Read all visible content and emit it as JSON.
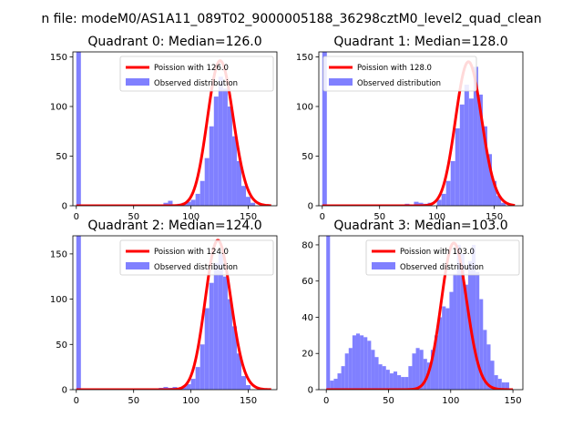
{
  "figure": {
    "suptitle": "n file: modeM0/AS1A11_089T02_9000005188_36298cztM0_level2_quad_clean"
  },
  "colors": {
    "poisson": "#ff0000",
    "observed": "#8080ff",
    "axes": "#000000"
  },
  "chart_data": [
    {
      "type": "bar",
      "title": "Quadrant 0: Median=126.0",
      "xlabel": "",
      "ylabel": "",
      "xlim": [
        -3,
        175
      ],
      "ylim": [
        0,
        155
      ],
      "xticks": [
        0,
        50,
        100,
        150
      ],
      "yticks": [
        0,
        50,
        100,
        150
      ],
      "legend_location": "upper-right",
      "series": [
        {
          "name": "Poission with 126.0",
          "kind": "line",
          "mean": 126.0,
          "peak": 146,
          "x_range": [
            0,
            170
          ]
        },
        {
          "name": "Observed distribution",
          "kind": "histogram",
          "bin_width": 4,
          "bins": [
            [
              0,
              160
            ],
            [
              76,
              3
            ],
            [
              80,
              5
            ],
            [
              84,
              1
            ],
            [
              88,
              2
            ],
            [
              92,
              3
            ],
            [
              96,
              4
            ],
            [
              100,
              6
            ],
            [
              104,
              12
            ],
            [
              108,
              25
            ],
            [
              112,
              48
            ],
            [
              116,
              80
            ],
            [
              120,
              110
            ],
            [
              124,
              130
            ],
            [
              128,
              118
            ],
            [
              132,
              100
            ],
            [
              136,
              70
            ],
            [
              140,
              45
            ],
            [
              144,
              20
            ],
            [
              148,
              9
            ],
            [
              152,
              3
            ]
          ]
        }
      ]
    },
    {
      "type": "bar",
      "title": "Quadrant 1: Median=128.0",
      "xlabel": "",
      "ylabel": "",
      "xlim": [
        -3,
        175
      ],
      "ylim": [
        0,
        155
      ],
      "xticks": [
        0,
        50,
        100,
        150
      ],
      "yticks": [
        0,
        50,
        100,
        150
      ],
      "legend_location": "upper-left",
      "series": [
        {
          "name": "Poission with 128.0",
          "kind": "line",
          "mean": 128.0,
          "peak": 145,
          "x_range": [
            0,
            168
          ]
        },
        {
          "name": "Observed distribution",
          "kind": "histogram",
          "bin_width": 4,
          "bins": [
            [
              0,
              160
            ],
            [
              72,
              2
            ],
            [
              80,
              4
            ],
            [
              84,
              3
            ],
            [
              88,
              2
            ],
            [
              92,
              3
            ],
            [
              100,
              6
            ],
            [
              104,
              12
            ],
            [
              108,
              25
            ],
            [
              112,
              45
            ],
            [
              116,
              78
            ],
            [
              120,
              102
            ],
            [
              124,
              122
            ],
            [
              128,
              108
            ],
            [
              132,
              140
            ],
            [
              136,
              112
            ],
            [
              140,
              80
            ],
            [
              144,
              52
            ],
            [
              148,
              25
            ],
            [
              152,
              10
            ],
            [
              156,
              3
            ]
          ]
        }
      ]
    },
    {
      "type": "bar",
      "title": "Quadrant 2: Median=124.0",
      "xlabel": "",
      "ylabel": "",
      "xlim": [
        -3,
        175
      ],
      "ylim": [
        0,
        170
      ],
      "xticks": [
        0,
        50,
        100,
        150
      ],
      "yticks": [
        0,
        50,
        100,
        150
      ],
      "legend_location": "upper-right",
      "series": [
        {
          "name": "Poission with 124.0",
          "kind": "line",
          "mean": 124.0,
          "peak": 165,
          "x_range": [
            0,
            170
          ]
        },
        {
          "name": "Observed distribution",
          "kind": "histogram",
          "bin_width": 4,
          "bins": [
            [
              0,
              170
            ],
            [
              72,
              2
            ],
            [
              76,
              3
            ],
            [
              80,
              2
            ],
            [
              84,
              3
            ],
            [
              88,
              2
            ],
            [
              92,
              4
            ],
            [
              96,
              6
            ],
            [
              100,
              12
            ],
            [
              104,
              25
            ],
            [
              108,
              50
            ],
            [
              112,
              90
            ],
            [
              116,
              118
            ],
            [
              120,
              140
            ],
            [
              124,
              150
            ],
            [
              128,
              125
            ],
            [
              132,
              100
            ],
            [
              136,
              70
            ],
            [
              140,
              40
            ],
            [
              144,
              15
            ],
            [
              148,
              5
            ]
          ]
        }
      ]
    },
    {
      "type": "bar",
      "title": "Quadrant 3: Median=103.0",
      "xlabel": "",
      "ylabel": "",
      "xlim": [
        -6,
        158
      ],
      "ylim": [
        0,
        85
      ],
      "xticks": [
        0,
        50,
        100,
        150
      ],
      "yticks": [
        0,
        20,
        40,
        60,
        80
      ],
      "legend_location": "upper-right",
      "series": [
        {
          "name": "Poission with 103.0",
          "kind": "line",
          "mean": 103.0,
          "peak": 81,
          "x_range": [
            0,
            150
          ]
        },
        {
          "name": "Observed distribution",
          "kind": "histogram",
          "bin_width": 3,
          "bins": [
            [
              0,
              85
            ],
            [
              3,
              5
            ],
            [
              6,
              6
            ],
            [
              9,
              9
            ],
            [
              12,
              13
            ],
            [
              15,
              20
            ],
            [
              18,
              23
            ],
            [
              21,
              30
            ],
            [
              24,
              31
            ],
            [
              27,
              30
            ],
            [
              30,
              29
            ],
            [
              33,
              27
            ],
            [
              36,
              22
            ],
            [
              39,
              18
            ],
            [
              42,
              14
            ],
            [
              45,
              13
            ],
            [
              48,
              11
            ],
            [
              51,
              9
            ],
            [
              54,
              10
            ],
            [
              57,
              8
            ],
            [
              60,
              7
            ],
            [
              63,
              7
            ],
            [
              66,
              13
            ],
            [
              69,
              20
            ],
            [
              72,
              23
            ],
            [
              75,
              22
            ],
            [
              78,
              17
            ],
            [
              81,
              15
            ],
            [
              84,
              22
            ],
            [
              87,
              30
            ],
            [
              90,
              40
            ],
            [
              93,
              46
            ],
            [
              96,
              45
            ],
            [
              99,
              54
            ],
            [
              102,
              64
            ],
            [
              105,
              80
            ],
            [
              108,
              75
            ],
            [
              111,
              58
            ],
            [
              114,
              71
            ],
            [
              117,
              80
            ],
            [
              120,
              65
            ],
            [
              123,
              50
            ],
            [
              126,
              33
            ],
            [
              129,
              25
            ],
            [
              132,
              16
            ],
            [
              135,
              8
            ],
            [
              138,
              6
            ],
            [
              141,
              4
            ],
            [
              144,
              4
            ]
          ]
        }
      ]
    }
  ]
}
